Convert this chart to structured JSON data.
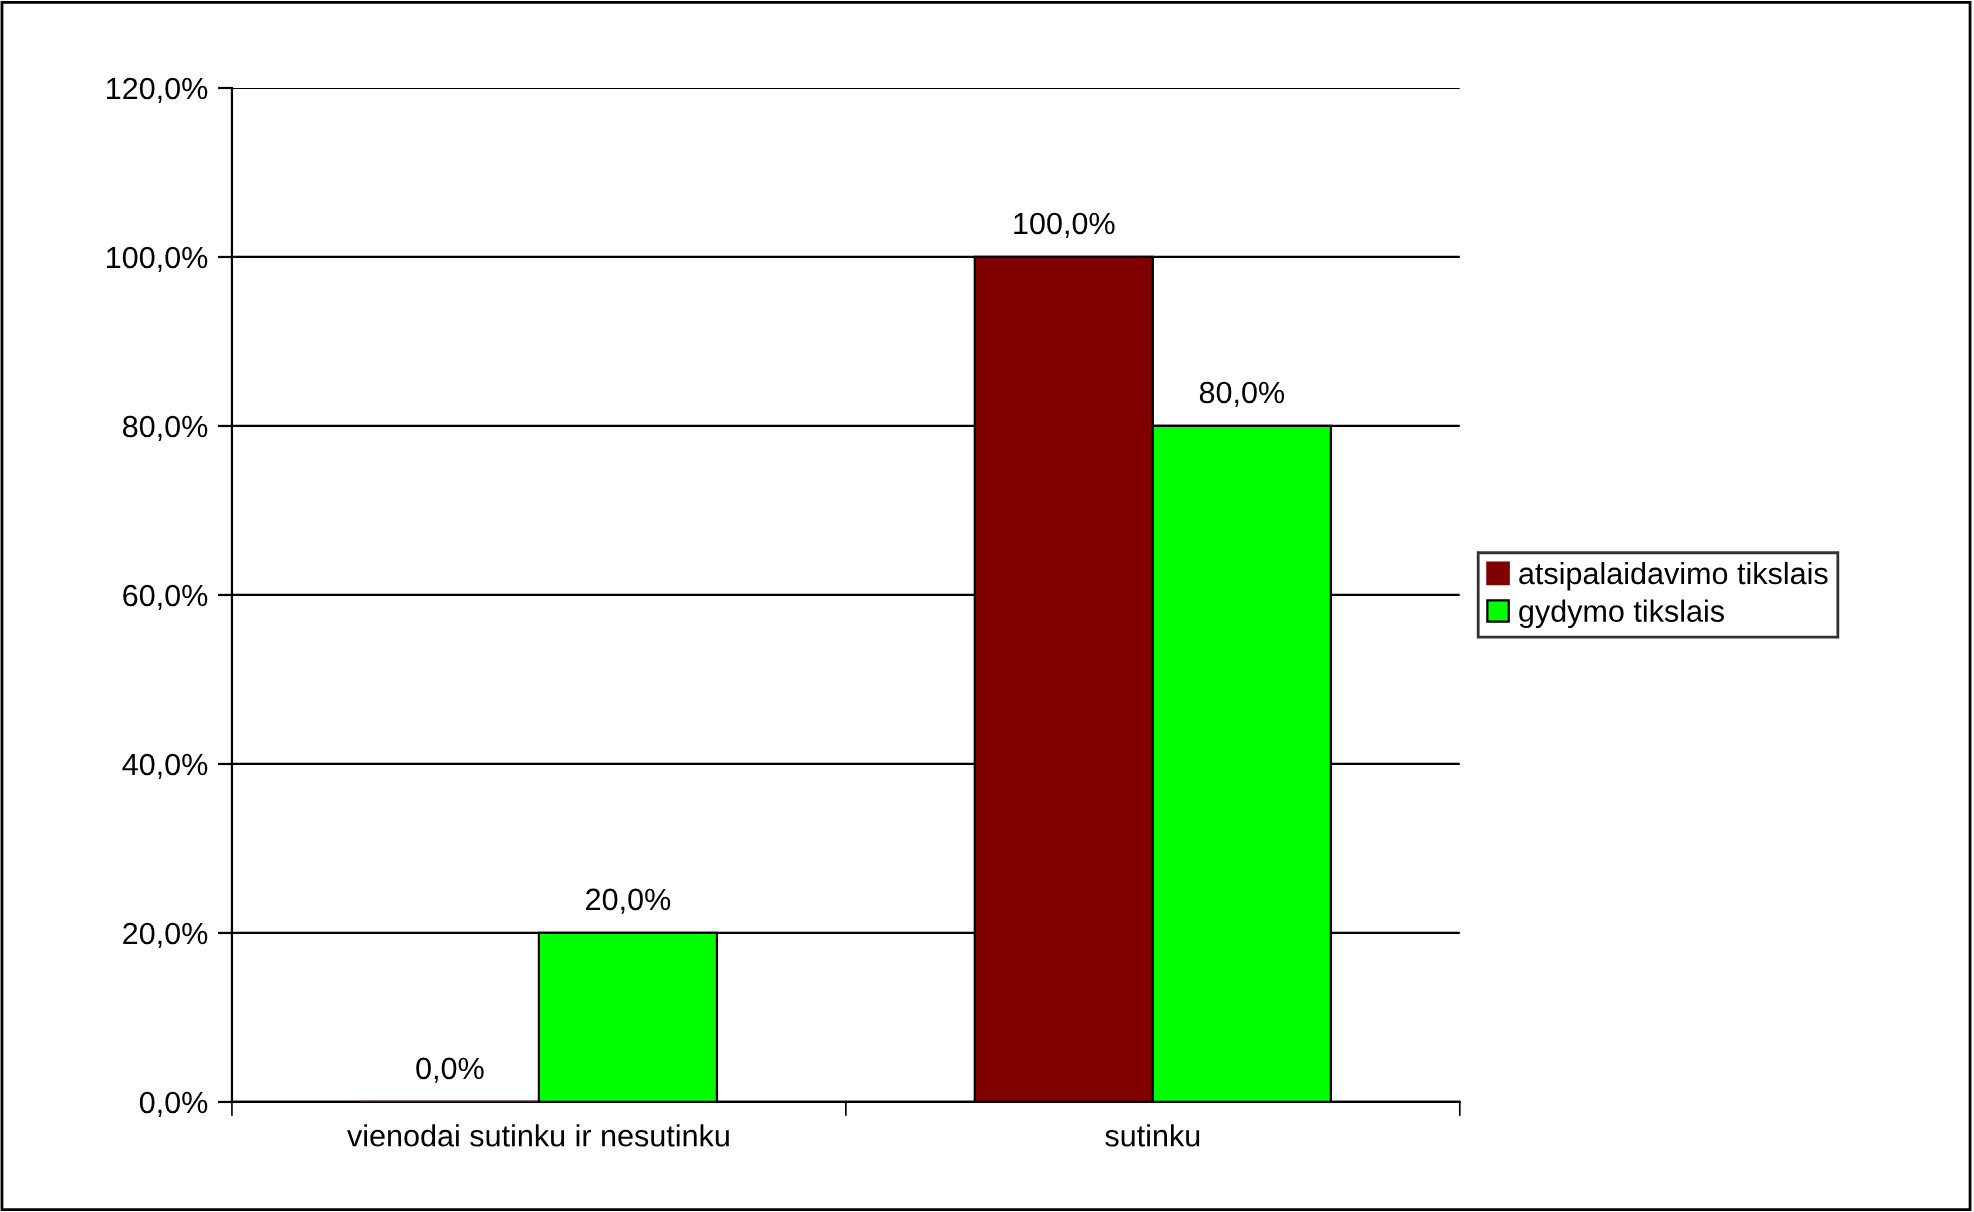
{
  "chart_data": {
    "type": "bar",
    "categories": [
      "vienodai sutinku ir nesutinku",
      "sutinku"
    ],
    "series": [
      {
        "name": "atsipalaidavimo tikslais",
        "color": "#800000",
        "values": [
          0,
          100
        ],
        "value_labels": [
          "0,0%",
          "100,0%"
        ]
      },
      {
        "name": "gydymo tikslais",
        "color": "#00ff00",
        "values": [
          20,
          80
        ],
        "value_labels": [
          "20,0%",
          "80,0%"
        ]
      }
    ],
    "ylim": [
      0,
      120
    ],
    "yticks": [
      {
        "value": 0,
        "label": "0,0%"
      },
      {
        "value": 20,
        "label": "20,0%"
      },
      {
        "value": 40,
        "label": "40,0%"
      },
      {
        "value": 60,
        "label": "60,0%"
      },
      {
        "value": 80,
        "label": "80,0%"
      },
      {
        "value": 100,
        "label": "100,0%"
      },
      {
        "value": 120,
        "label": "120,0%"
      }
    ],
    "grid": "y",
    "legend": "right"
  }
}
